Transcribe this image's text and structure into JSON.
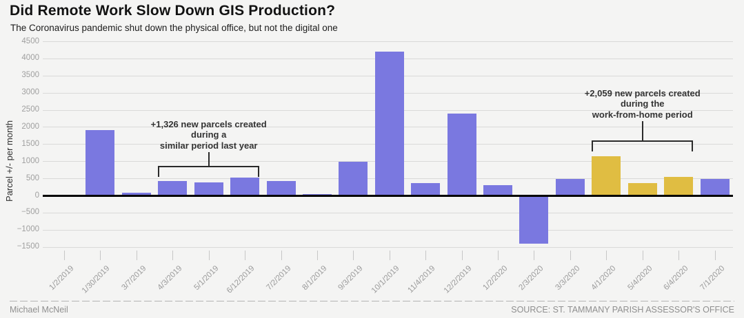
{
  "chart_data": {
    "type": "bar",
    "title": "Did Remote Work Slow Down GIS Production?",
    "subtitle": "The Coronavirus pandemic shut down the physical office, but not the digital one",
    "xlabel": "",
    "ylabel": "Parcel +/- per month",
    "ylim": [
      -1500,
      4500
    ],
    "ytick_step": 500,
    "ytick_labels": [
      "4500",
      "4000",
      "3500",
      "3000",
      "2500",
      "2000",
      "1500",
      "1000",
      "500",
      "0",
      "−500",
      "−1000",
      "−1500"
    ],
    "grid": true,
    "legend": "none",
    "categories": [
      "1/2/2019",
      "1/30/2019",
      "3/7/2019",
      "4/3/2019",
      "5/1/2019",
      "6/12/2019",
      "7/2/2019",
      "8/1/2019",
      "9/3/2019",
      "10/1/2019",
      "11/4/2019",
      "12/2/2019",
      "1/2/2020",
      "2/3/2020",
      "3/3/2020",
      "4/1/2020",
      "5/4/2020",
      "6/4/2020",
      "7/1/2020"
    ],
    "values": [
      -50,
      1900,
      80,
      425,
      380,
      521,
      420,
      40,
      975,
      4200,
      360,
      2400,
      310,
      -1400,
      480,
      1150,
      364,
      545,
      485
    ],
    "bar_color_default": "#7a78e0",
    "bar_color_highlight": "#e0bd42",
    "highlight_categories": [
      "4/1/2020",
      "5/4/2020",
      "6/4/2020"
    ],
    "annotations": [
      {
        "id": "last-year",
        "lines": [
          "+1,326 new parcels created",
          "during a",
          "similar period last year"
        ],
        "span_from": "4/3/2019",
        "span_to": "6/12/2019"
      },
      {
        "id": "wfh",
        "lines": [
          "+2,059 new parcels created",
          "during the",
          "work-from-home period"
        ],
        "span_from": "4/1/2020",
        "span_to": "6/4/2020"
      }
    ]
  },
  "footer": {
    "byline": "Michael McNeil",
    "source": "SOURCE: ST. TAMMANY PARISH ASSESSOR'S OFFICE"
  }
}
